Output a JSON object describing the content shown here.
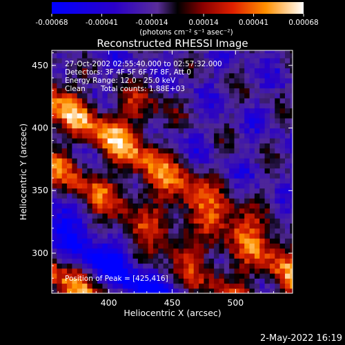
{
  "colorbar": {
    "ticks": [
      "-0.00068",
      "-0.00041",
      "-0.00014",
      "0.00014",
      "0.00041",
      "0.00068"
    ],
    "units_label": "(photons cm⁻² s⁻¹ asec⁻²)",
    "range": [
      -0.00068,
      0.00068
    ]
  },
  "chart_data": {
    "type": "heatmap",
    "title": "Reconstructed RHESSI Image",
    "xlabel": "Heliocentric X (arcsec)",
    "ylabel": "Heliocentric Y (arcsec)",
    "xlim": [
      355,
      545
    ],
    "ylim": [
      268,
      462
    ],
    "x_ticks": [
      "400",
      "450",
      "500"
    ],
    "y_ticks": [
      "300",
      "350",
      "400",
      "450"
    ],
    "annotations": {
      "time_range": "27-Oct-2002 02:55:40.000 to 02:57:32.000",
      "detectors": "Detectors: 3F 4F 5F 6F 7F 8F, Att 0",
      "energy": "Energy Range: 12.0 - 25.0 keV",
      "clean": "Clean",
      "total_counts": "Total counts: 1.88E+03",
      "peak": "Position of Peak = [425,416]"
    },
    "peak": {
      "x": 425,
      "y": 416
    },
    "bands": [
      {
        "intercept": 680,
        "slope": -0.72,
        "width": 14,
        "amp": 0.95
      },
      {
        "intercept": 626,
        "slope": -0.72,
        "width": 12,
        "amp": 0.75
      },
      {
        "intercept": 582,
        "slope": -0.72,
        "width": 12,
        "amp": -0.7
      },
      {
        "intercept": 542,
        "slope": -0.72,
        "width": 13,
        "amp": 0.8
      },
      {
        "intercept": 505,
        "slope": -0.72,
        "width": 10,
        "amp": -0.55
      },
      {
        "intercept": 470,
        "slope": -0.72,
        "width": 11,
        "amp": 0.55
      },
      {
        "intercept": 446,
        "slope": -0.72,
        "width": 10,
        "amp": 0.75
      },
      {
        "intercept": 405,
        "slope": -0.72,
        "width": 12,
        "amp": -0.25
      },
      {
        "intercept": 372,
        "slope": -0.72,
        "width": 13,
        "amp": 0.95
      }
    ]
  },
  "footer": {
    "timestamp": "2-May-2022 16:19"
  }
}
